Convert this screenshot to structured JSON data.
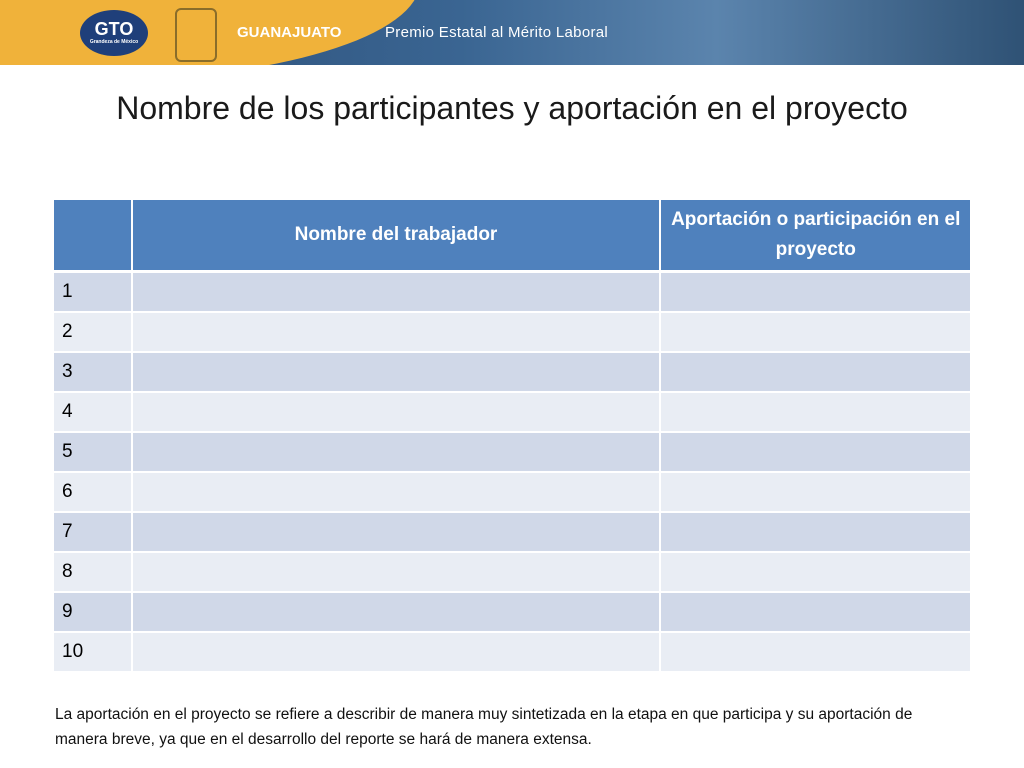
{
  "header": {
    "logo": "GTO",
    "logo_sub": "Grandeza de México",
    "state": "GUANAJUATO",
    "program": "Premio Estatal al Mérito Laboral"
  },
  "title": "Nombre de los participantes y aportación en el proyecto",
  "table": {
    "columns": [
      "",
      "Nombre del trabajador",
      "Aportación o participación en el proyecto"
    ],
    "rows": [
      "1",
      "2",
      "3",
      "4",
      "5",
      "6",
      "7",
      "8",
      "9",
      "10"
    ]
  },
  "footnote": "La aportación en el proyecto se refiere a describir de manera muy sintetizada en la etapa en que participa y su aportación de manera breve, ya que en el desarrollo del reporte se hará de manera extensa."
}
